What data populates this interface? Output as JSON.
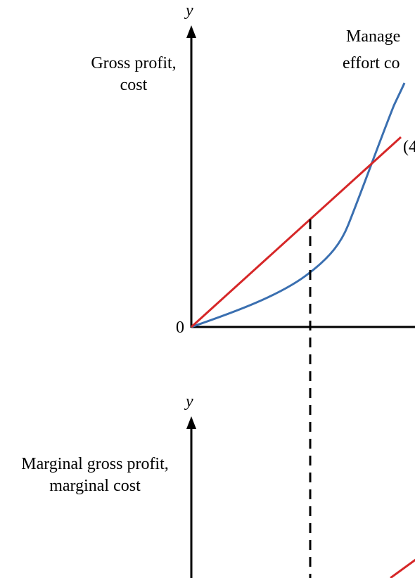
{
  "top_panel": {
    "y_axis_symbol": "y",
    "y_axis_label_line1": "Gross profit,",
    "y_axis_label_line2": "cost",
    "origin_label": "0",
    "curve_label_line1": "Manage",
    "curve_label_line2": "effort co",
    "line_label": "(4"
  },
  "bottom_panel": {
    "y_axis_symbol": "y",
    "y_axis_label_line1": "Marginal gross profit,",
    "y_axis_label_line2": "marginal cost"
  },
  "colors": {
    "axis": "#000000",
    "gross_profit_line": "#d62728",
    "effort_cost_curve": "#3a6fb0",
    "dashed_guide": "#000000"
  }
}
